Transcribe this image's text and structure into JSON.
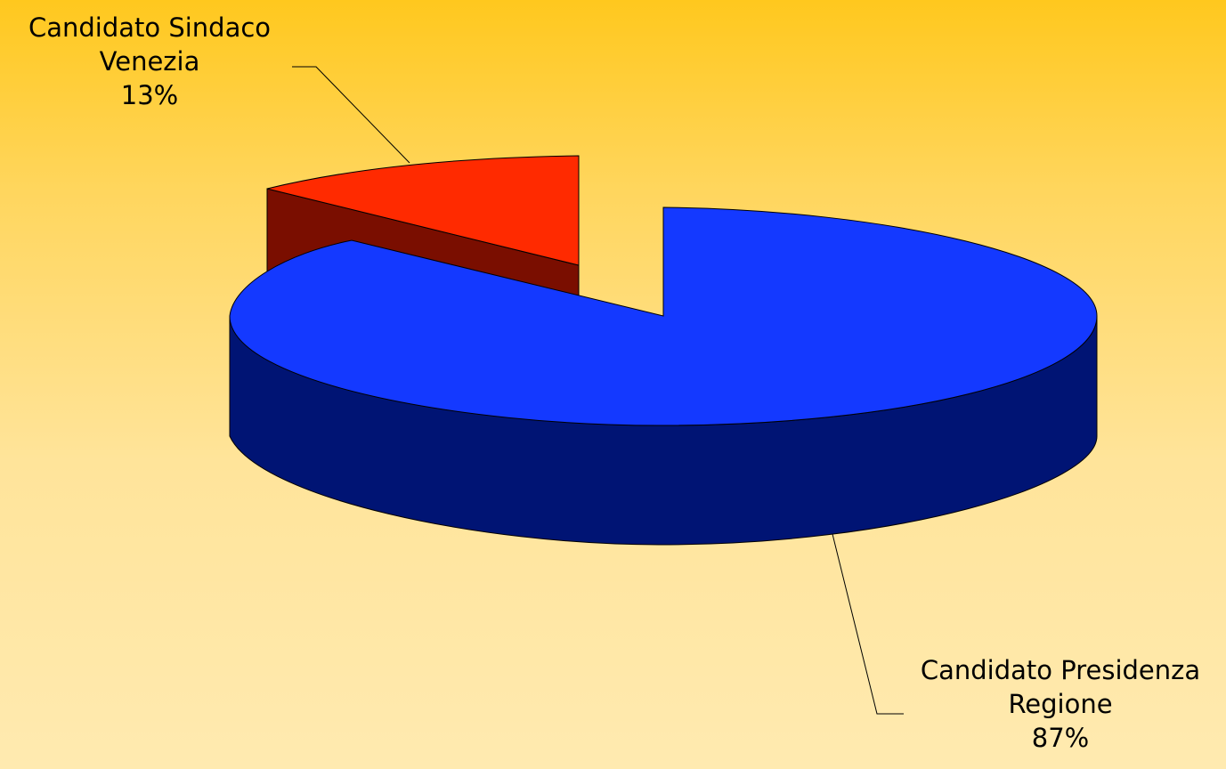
{
  "chart_data": {
    "type": "pie",
    "style": "3d-exploded",
    "title": "",
    "slices": [
      {
        "name": "Candidato Presidenza Regione",
        "label_lines": [
          "Candidato Presidenza",
          "Regione"
        ],
        "value": 87,
        "value_label": "87%",
        "color_top": "#1439ff",
        "color_side": "#001474"
      },
      {
        "name": "Candidato Sindaco Venezia",
        "label_lines": [
          "Candidato Sindaco",
          "Venezia"
        ],
        "value": 13,
        "value_label": "13%",
        "color_top": "#ff2a00",
        "color_side": "#7a0e00"
      }
    ],
    "legend": "none",
    "labels": "outside-with-leader-lines"
  }
}
